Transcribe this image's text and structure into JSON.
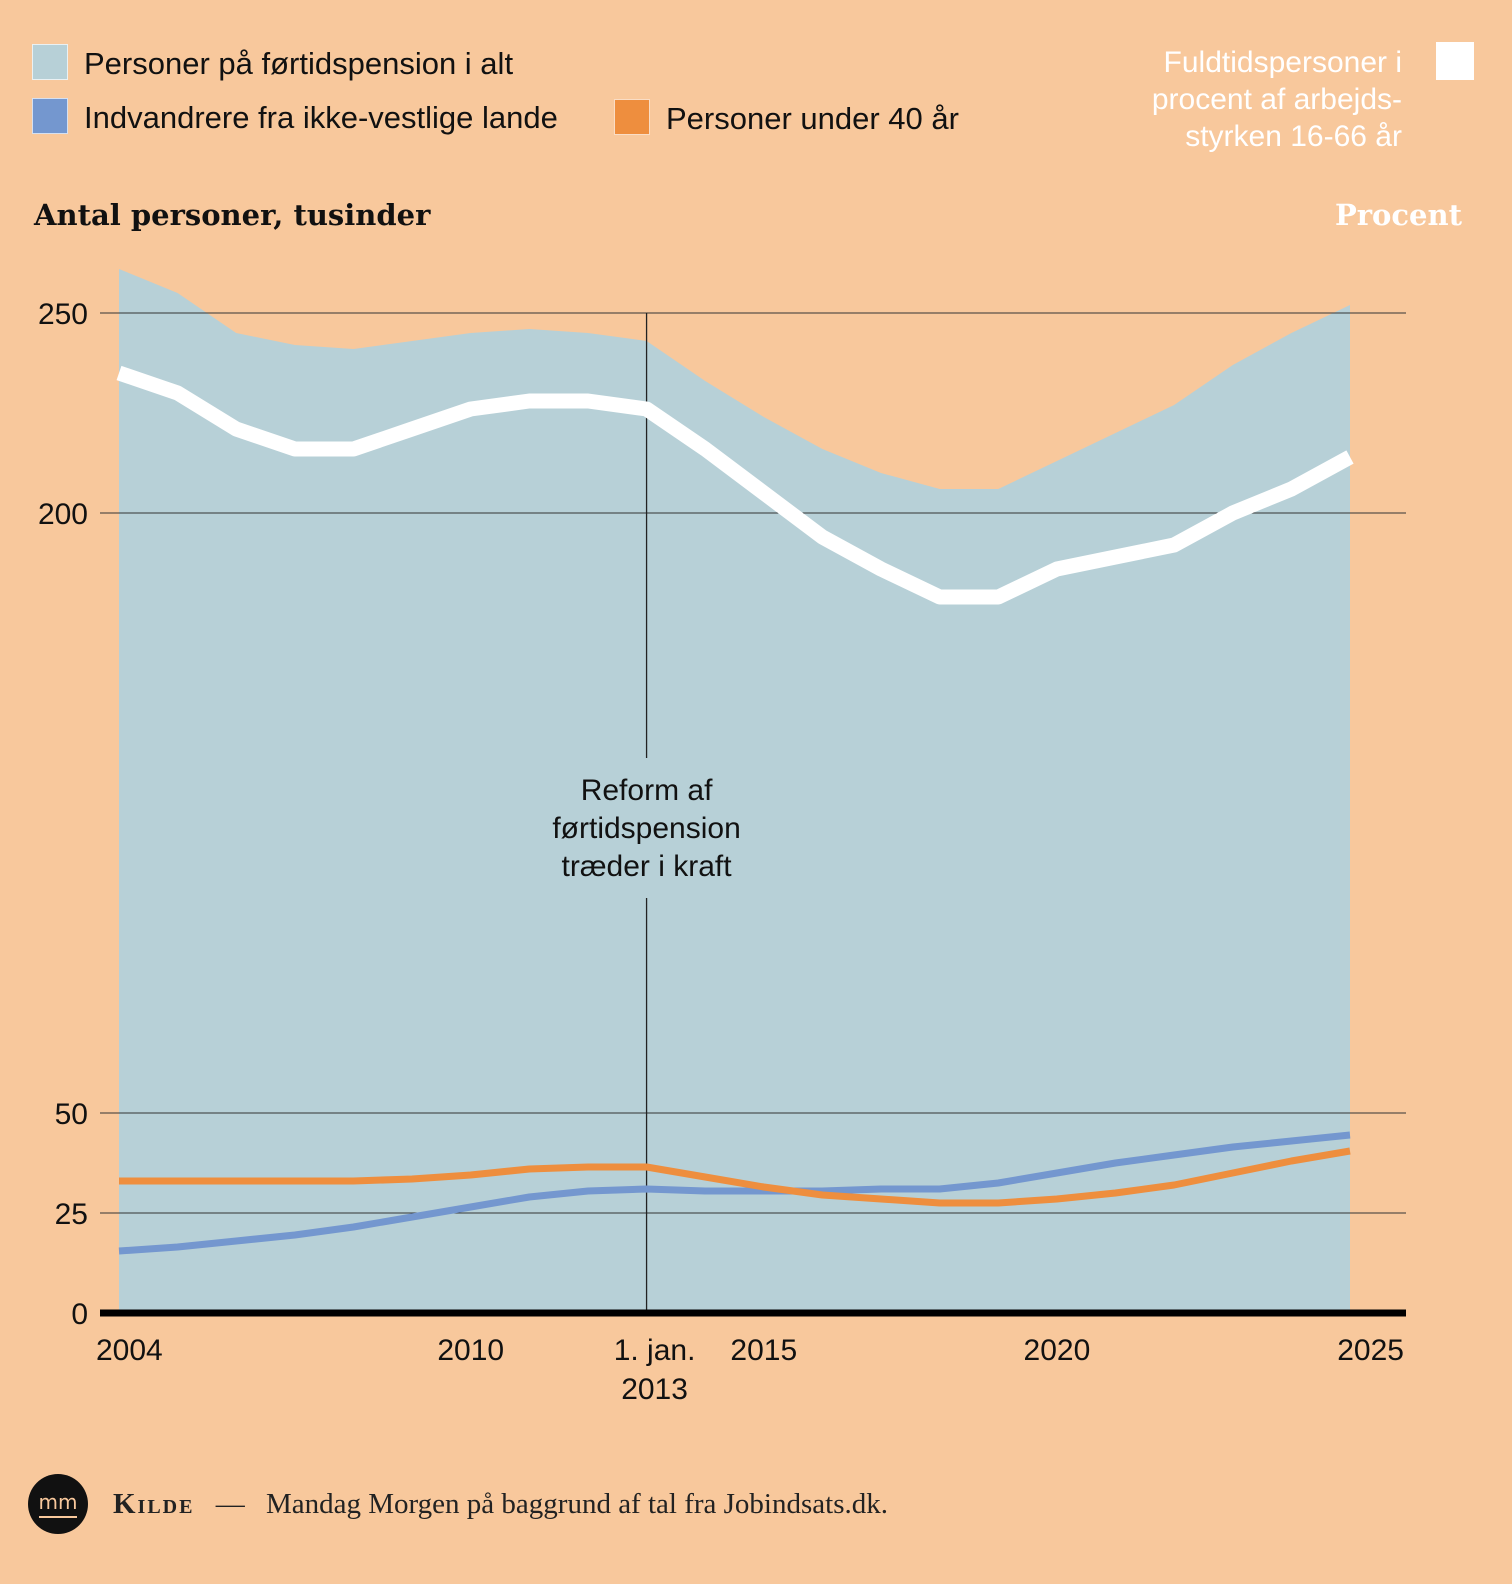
{
  "legend": {
    "items": [
      {
        "label": "Personer på førtidspension i alt",
        "color": "#b7d0d7"
      },
      {
        "label": "Indvandrere fra ikke-vestlige lande",
        "color": "#7497cf"
      },
      {
        "label": "Personer under 40 år",
        "color": "#ee8e3e"
      }
    ],
    "right_label": [
      "Fuldtidspersoner i",
      "procent af arbejds-",
      "styrken 16-66 år"
    ],
    "right_color": "#ffffff"
  },
  "axis_titles": {
    "left": "Antal personer, tusinder",
    "right": "Procent"
  },
  "annotation": {
    "lines": [
      "Reform af",
      "førtidspension",
      "træder i kraft"
    ],
    "x": 2013
  },
  "source": {
    "kilde": "Kilde",
    "dash": "—",
    "text": "Mandag Morgen på baggrund af tal fra Jobindsats.dk."
  },
  "logo": {
    "text": "mm"
  },
  "chart_data": {
    "type": "area",
    "xlabel": "",
    "ylabel": "Antal personer, tusinder",
    "ylim": [
      0,
      250
    ],
    "y_ticks": [
      0,
      25,
      50,
      200,
      250
    ],
    "y_axis_break": [
      50,
      200
    ],
    "x_range": [
      2004,
      2025
    ],
    "x_ticks": [
      {
        "value": 2004,
        "lines": [
          "2004"
        ]
      },
      {
        "value": 2010,
        "lines": [
          "2010"
        ]
      },
      {
        "value": 2013,
        "lines": [
          "1. jan.",
          "2013"
        ]
      },
      {
        "value": 2015,
        "lines": [
          "2015"
        ]
      },
      {
        "value": 2020,
        "lines": [
          "2020"
        ]
      },
      {
        "value": 2025,
        "lines": [
          "2025"
        ]
      }
    ],
    "x": [
      2004,
      2005,
      2006,
      2007,
      2008,
      2009,
      2010,
      2011,
      2012,
      2013,
      2014,
      2015,
      2016,
      2017,
      2018,
      2019,
      2020,
      2021,
      2022,
      2023,
      2024,
      2025
    ],
    "series": [
      {
        "name": "Personer på førtidspension i alt",
        "kind": "area",
        "color": "#b7d0d7",
        "values": [
          261,
          255,
          245,
          242,
          241,
          243,
          245,
          246,
          245,
          243,
          233,
          224,
          216,
          210,
          206,
          206,
          213,
          220,
          227,
          237,
          245,
          252
        ]
      },
      {
        "name": "Fuldtidspersoner i procent af arbejdsstyrken 16-66 år",
        "kind": "line",
        "color": "#ffffff",
        "values": [
          235,
          230,
          221,
          216,
          216,
          221,
          226,
          228,
          228,
          226,
          216,
          205,
          194,
          186,
          179,
          179,
          186,
          189,
          192,
          200,
          206,
          214
        ]
      },
      {
        "name": "Indvandrere fra ikke-vestlige lande",
        "kind": "line",
        "color": "#7497cf",
        "values": [
          15.5,
          16.5,
          18,
          19.5,
          21.5,
          24,
          26.5,
          29,
          30.5,
          31,
          30.5,
          30.5,
          30.5,
          31,
          31,
          32.5,
          35,
          37.5,
          39.5,
          41.5,
          43,
          44.5
        ]
      },
      {
        "name": "Personer under 40 år",
        "kind": "line",
        "color": "#ee8e3e",
        "values": [
          33,
          33,
          33,
          33,
          33,
          33.5,
          34.5,
          36,
          36.5,
          36.5,
          34,
          31.5,
          29.5,
          28.5,
          27.5,
          27.5,
          28.5,
          30,
          32,
          35,
          38,
          40.5
        ]
      }
    ],
    "grid": true
  }
}
